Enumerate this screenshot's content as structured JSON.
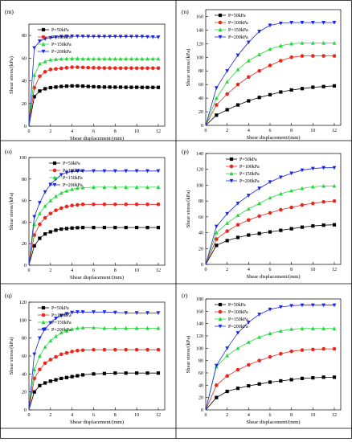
{
  "style": {
    "colors": {
      "P50": "#000000",
      "P100": "#e8281f",
      "P150": "#22d83a",
      "P200": "#1b27e0",
      "axis": "#000000",
      "grid_line": "#000000"
    },
    "markers": {
      "P50": "square",
      "P100": "circle",
      "P150": "triangle-up",
      "P200": "triangle-down"
    }
  },
  "chart_data": [
    {
      "panel": "(m)",
      "type": "line",
      "xlabel": "Shear displacement/(mm)",
      "ylabel": "Shear stress/(kPa)",
      "xlim": [
        0,
        12.6
      ],
      "ylim": [
        0,
        90
      ],
      "xticks": [
        0,
        2,
        4,
        6,
        8,
        10,
        12
      ],
      "yticks": [
        0,
        20,
        40,
        60,
        80
      ],
      "x": [
        0,
        0.5,
        1,
        1.5,
        2,
        2.5,
        3,
        3.5,
        4,
        4.5,
        5,
        5.5,
        6,
        6.5,
        7,
        7.5,
        8,
        8.5,
        9,
        9.5,
        10,
        10.5,
        11,
        11.5,
        12
      ],
      "series": [
        {
          "name": "P=50kPa",
          "values": [
            0,
            26,
            31,
            33,
            34,
            34.5,
            35,
            35.3,
            35.5,
            35.5,
            35.3,
            35,
            34.8,
            34.6,
            34.5,
            34.5,
            34.4,
            34.4,
            34.3,
            34.3,
            34.3,
            34.2,
            34.2,
            34.2,
            34.2
          ]
        },
        {
          "name": "P=100kPa",
          "values": [
            0,
            34,
            44,
            48,
            50,
            50.5,
            51,
            51.5,
            52,
            52,
            51.8,
            51.6,
            51.5,
            51.4,
            51.3,
            51.3,
            51.2,
            51.2,
            51.2,
            51.2,
            51.2,
            51.2,
            51.2,
            51.2,
            51.2
          ]
        },
        {
          "name": "P=150kPa",
          "values": [
            0,
            45,
            55,
            57,
            58.5,
            59,
            59.3,
            59.5,
            59.6,
            59.6,
            59.5,
            59.5,
            59.4,
            59.4,
            59.4,
            59.4,
            59.4,
            59.4,
            59.4,
            59.4,
            59.4,
            59.4,
            59.4,
            59.4,
            59.4
          ]
        },
        {
          "name": "P=200kPa",
          "values": [
            0,
            69,
            75,
            77,
            78,
            78.5,
            79,
            79.2,
            79.3,
            79.3,
            79.2,
            79.1,
            79,
            79,
            79,
            79,
            79,
            79,
            79,
            79,
            79,
            79,
            78.8,
            78.6,
            78.5
          ]
        }
      ],
      "legend": [
        "P=50kPa",
        "P=100kPa",
        "P=150kPa",
        "P=200kPa"
      ],
      "legend_position": "top-left"
    },
    {
      "panel": "(n)",
      "type": "line",
      "xlabel": "Shear displacement/(mm)",
      "ylabel": "Shear stress/(kPa)",
      "xlim": [
        0,
        12.6
      ],
      "ylim": [
        0,
        170
      ],
      "xticks": [
        0,
        2,
        4,
        6,
        8,
        10,
        12
      ],
      "yticks": [
        0,
        20,
        40,
        60,
        80,
        100,
        120,
        140,
        160
      ],
      "x": [
        0,
        1,
        2,
        3,
        4,
        5,
        6,
        7,
        8,
        9,
        10,
        11,
        12
      ],
      "series": [
        {
          "name": "P=50kPa",
          "values": [
            0,
            15,
            23,
            30,
            36,
            41,
            45,
            49,
            52,
            54,
            56,
            57,
            58
          ]
        },
        {
          "name": "P=100kPa",
          "values": [
            0,
            30,
            46,
            60,
            71,
            80,
            88,
            95,
            100,
            102,
            102,
            102,
            102
          ]
        },
        {
          "name": "P=150kPa",
          "values": [
            0,
            40,
            64,
            82,
            95,
            104,
            112,
            117,
            120,
            121,
            121,
            121,
            121
          ]
        },
        {
          "name": "P=200kPa",
          "values": [
            0,
            55,
            80,
            103,
            122,
            138,
            147,
            150,
            151,
            151,
            151,
            151,
            151
          ]
        }
      ],
      "legend": [
        "P=50kPa",
        "P=100kPa",
        "P=150kPa",
        "P=200kPa"
      ],
      "legend_position": "top-left"
    },
    {
      "panel": "(o)",
      "type": "line",
      "xlabel": "Shear displacement/(mm)",
      "ylabel": "Shear stress/(kPa)",
      "xlim": [
        0,
        12.6
      ],
      "ylim": [
        0,
        100
      ],
      "xticks": [
        0,
        2,
        4,
        6,
        8,
        10,
        12
      ],
      "yticks": [
        0,
        20,
        40,
        60,
        80,
        100
      ],
      "x": [
        0,
        0.5,
        1,
        1.5,
        2,
        2.5,
        3,
        3.5,
        4,
        4.5,
        5,
        6,
        7,
        8,
        9,
        10,
        11,
        12
      ],
      "series": [
        {
          "name": "P=50kPa",
          "values": [
            0,
            18,
            25,
            29,
            31,
            32.5,
            33.5,
            34,
            34.5,
            34.8,
            35,
            35,
            35,
            35,
            35,
            35,
            35,
            35
          ]
        },
        {
          "name": "P=100kPa",
          "values": [
            0,
            28,
            38,
            44,
            48,
            51,
            53,
            54.5,
            55.5,
            56,
            56.5,
            56.5,
            56.5,
            56.5,
            56.5,
            56.5,
            56.5,
            56.5
          ]
        },
        {
          "name": "P=150kPa",
          "values": [
            0,
            38,
            48,
            55,
            60,
            64,
            67,
            69,
            70.5,
            71.5,
            72,
            72.5,
            72.5,
            72.5,
            72.5,
            72.5,
            72.5,
            72.5
          ]
        },
        {
          "name": "P=200kPa",
          "values": [
            0,
            45,
            58,
            68,
            75,
            80,
            84,
            86,
            87,
            87.5,
            87.5,
            87.5,
            87.5,
            87.5,
            87.5,
            87.5,
            87.5,
            87.5
          ]
        }
      ],
      "legend": [
        "P=50kPa",
        "P=100kPa",
        "P=150kPa",
        "P=200kPa"
      ],
      "legend_position": "top-right"
    },
    {
      "panel": "(p)",
      "type": "line",
      "xlabel": "Shear displacement/(mm)",
      "ylabel": "Shear stress/(kPa)",
      "xlim": [
        0,
        12.6
      ],
      "ylim": [
        0,
        140
      ],
      "xticks": [
        0,
        2,
        4,
        6,
        8,
        10,
        12
      ],
      "yticks": [
        0,
        20,
        40,
        60,
        80,
        100,
        120,
        140
      ],
      "x": [
        0,
        1,
        2,
        3,
        4,
        5,
        6,
        7,
        8,
        9,
        10,
        11,
        12
      ],
      "series": [
        {
          "name": "P=50kPa",
          "values": [
            0,
            24,
            30,
            34,
            37,
            39,
            41,
            43,
            45,
            47,
            48.5,
            49.5,
            50
          ]
        },
        {
          "name": "P=100kPa",
          "values": [
            0,
            32,
            42,
            50,
            56,
            61,
            65,
            69,
            72,
            75,
            77,
            79,
            80
          ]
        },
        {
          "name": "P=150kPa",
          "values": [
            0,
            40,
            52,
            62,
            70,
            77,
            84,
            89,
            93,
            96,
            98,
            99,
            99
          ]
        },
        {
          "name": "P=200kPa",
          "values": [
            0,
            48,
            64,
            77,
            87,
            96,
            104,
            110,
            115,
            119,
            121,
            122,
            122
          ]
        }
      ],
      "legend": [
        "P=50kPa",
        "P=100kPa",
        "P=150kPa",
        "P=200kPa"
      ],
      "legend_position": "top-right"
    },
    {
      "panel": "(q)",
      "type": "line",
      "xlabel": "Shear displacement/(mm)",
      "ylabel": "Shear stress/(kPa)",
      "xlim": [
        0,
        12.6
      ],
      "ylim": [
        0,
        120
      ],
      "xticks": [
        0,
        2,
        4,
        6,
        8,
        10,
        12
      ],
      "yticks": [
        0,
        20,
        40,
        60,
        80,
        100,
        120
      ],
      "x": [
        0,
        0.5,
        1,
        1.5,
        2,
        2.5,
        3,
        3.5,
        4,
        4.5,
        5,
        6,
        7,
        8,
        9,
        10,
        11,
        12
      ],
      "series": [
        {
          "name": "P=50kPa",
          "values": [
            0,
            20,
            27,
            30,
            32,
            33.5,
            35,
            36,
            37,
            38,
            39,
            40,
            40.5,
            41,
            41,
            41,
            41,
            41
          ]
        },
        {
          "name": "P=100kPa",
          "values": [
            0,
            35,
            45,
            52,
            56,
            59,
            62,
            63.5,
            65,
            66,
            66.5,
            67,
            67,
            67,
            67,
            67,
            67,
            67
          ]
        },
        {
          "name": "P=150kPa",
          "values": [
            0,
            45,
            60,
            70,
            77,
            82,
            86,
            88,
            90,
            91,
            91.5,
            91.5,
            91,
            91,
            91,
            91,
            91,
            91
          ]
        },
        {
          "name": "P=200kPa",
          "values": [
            0,
            62,
            80,
            90,
            97,
            102,
            105,
            107,
            108.5,
            109,
            109,
            109,
            109,
            108.5,
            108,
            108,
            108,
            108
          ]
        }
      ],
      "legend": [
        "P=50kPa",
        "P=100kPa",
        "P=150kPa",
        "P=200kPa"
      ],
      "legend_position": "top-left"
    },
    {
      "panel": "(r)",
      "type": "line",
      "xlabel": "Shear displacement/(mm)",
      "ylabel": "Shear stress/(kPa)",
      "xlim": [
        0,
        12.6
      ],
      "ylim": [
        0,
        180
      ],
      "xticks": [
        0,
        2,
        4,
        6,
        8,
        10,
        12
      ],
      "yticks": [
        0,
        20,
        40,
        60,
        80,
        100,
        120,
        140,
        160,
        180
      ],
      "x": [
        0,
        1,
        2,
        3,
        4,
        5,
        6,
        7,
        8,
        9,
        10,
        11,
        12
      ],
      "series": [
        {
          "name": "P=50kPa",
          "values": [
            0,
            20,
            30,
            35,
            39,
            42,
            45,
            47,
            49,
            51,
            52,
            53,
            53
          ]
        },
        {
          "name": "P=100kPa",
          "values": [
            0,
            40,
            55,
            65,
            73,
            80,
            86,
            91,
            95,
            97,
            98,
            99,
            99
          ]
        },
        {
          "name": "P=150kPa",
          "values": [
            0,
            70,
            88,
            100,
            110,
            118,
            124,
            128,
            131,
            132,
            132,
            132,
            132
          ]
        },
        {
          "name": "P=200kPa",
          "values": [
            0,
            72,
            100,
            125,
            142,
            155,
            163,
            167,
            169,
            170,
            170,
            170,
            170
          ]
        }
      ],
      "legend": [
        "P=50kPa",
        "P=100kPa",
        "P=150kPa",
        "P=200kPa"
      ],
      "legend_position": "top-left"
    }
  ]
}
